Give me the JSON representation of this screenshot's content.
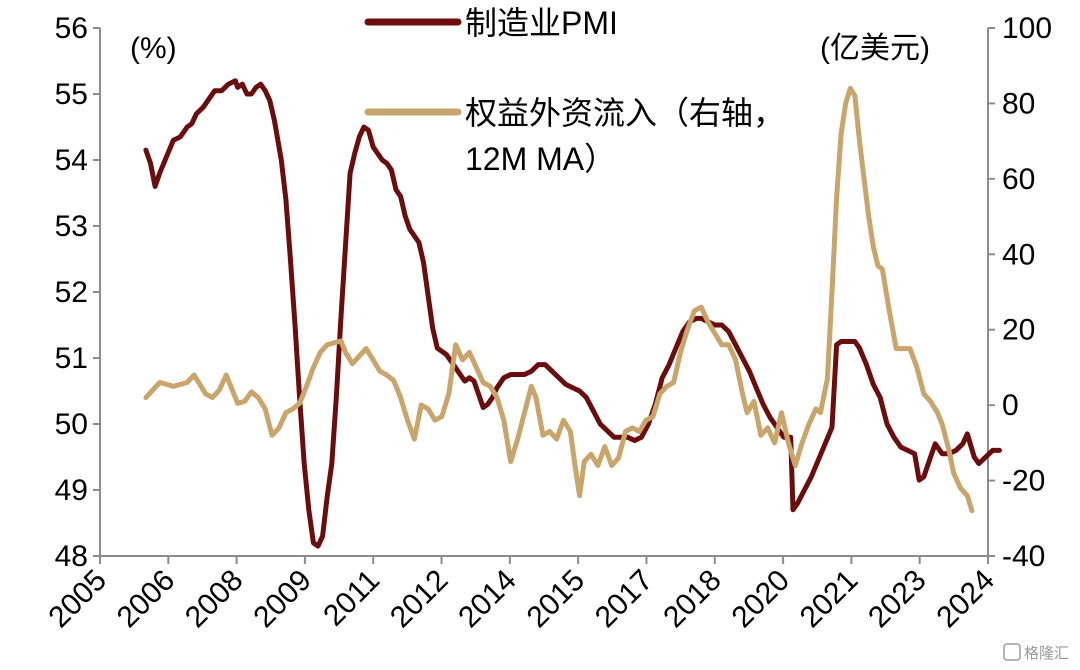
{
  "chart_data": {
    "type": "line",
    "x_ticks": [
      "2005",
      "2006",
      "2008",
      "2009",
      "2011",
      "2012",
      "2014",
      "2015",
      "2017",
      "2018",
      "2020",
      "2021",
      "2023",
      "2024"
    ],
    "y_left": {
      "unit": "(%)",
      "ylim": [
        48,
        56
      ],
      "ticks": [
        "48",
        "49",
        "50",
        "51",
        "52",
        "53",
        "54",
        "55",
        "56"
      ]
    },
    "y_right": {
      "unit": "(亿美元)",
      "ylim": [
        -40,
        100
      ],
      "ticks": [
        "-40",
        "-20",
        "0",
        "20",
        "40",
        "60",
        "80",
        "100"
      ]
    },
    "grid": false,
    "legend_position": "top-center",
    "series": [
      {
        "name": "制造业PMI",
        "axis": "left",
        "color": "#6b0d0d",
        "points": [
          [
            2006.0,
            54.15
          ],
          [
            2006.1,
            53.95
          ],
          [
            2006.2,
            53.6
          ],
          [
            2006.3,
            53.8
          ],
          [
            2006.45,
            54.05
          ],
          [
            2006.6,
            54.3
          ],
          [
            2006.75,
            54.35
          ],
          [
            2006.9,
            54.5
          ],
          [
            2007.0,
            54.55
          ],
          [
            2007.1,
            54.7
          ],
          [
            2007.25,
            54.8
          ],
          [
            2007.4,
            54.95
          ],
          [
            2007.5,
            55.05
          ],
          [
            2007.65,
            55.05
          ],
          [
            2007.8,
            55.15
          ],
          [
            2007.95,
            55.2
          ],
          [
            2008.0,
            55.1
          ],
          [
            2008.1,
            55.15
          ],
          [
            2008.2,
            55.0
          ],
          [
            2008.3,
            55.0
          ],
          [
            2008.4,
            55.1
          ],
          [
            2008.5,
            55.15
          ],
          [
            2008.6,
            55.05
          ],
          [
            2008.7,
            54.9
          ],
          [
            2008.8,
            54.6
          ],
          [
            2008.95,
            54.0
          ],
          [
            2009.05,
            53.4
          ],
          [
            2009.15,
            52.5
          ],
          [
            2009.25,
            51.5
          ],
          [
            2009.35,
            50.4
          ],
          [
            2009.45,
            49.4
          ],
          [
            2009.55,
            48.7
          ],
          [
            2009.65,
            48.2
          ],
          [
            2009.75,
            48.15
          ],
          [
            2009.85,
            48.3
          ],
          [
            2009.95,
            48.9
          ],
          [
            2010.05,
            49.4
          ],
          [
            2010.15,
            50.4
          ],
          [
            2010.25,
            51.6
          ],
          [
            2010.35,
            52.7
          ],
          [
            2010.45,
            53.8
          ],
          [
            2010.55,
            54.1
          ],
          [
            2010.65,
            54.35
          ],
          [
            2010.75,
            54.5
          ],
          [
            2010.85,
            54.45
          ],
          [
            2010.95,
            54.2
          ],
          [
            2011.05,
            54.1
          ],
          [
            2011.15,
            54.0
          ],
          [
            2011.25,
            53.95
          ],
          [
            2011.35,
            53.85
          ],
          [
            2011.45,
            53.55
          ],
          [
            2011.55,
            53.45
          ],
          [
            2011.65,
            53.15
          ],
          [
            2011.75,
            52.95
          ],
          [
            2011.85,
            52.85
          ],
          [
            2011.95,
            52.75
          ],
          [
            2012.05,
            52.45
          ],
          [
            2012.15,
            51.95
          ],
          [
            2012.25,
            51.45
          ],
          [
            2012.35,
            51.15
          ],
          [
            2012.45,
            51.1
          ],
          [
            2012.55,
            51.05
          ],
          [
            2012.65,
            50.95
          ],
          [
            2012.75,
            50.85
          ],
          [
            2012.85,
            50.75
          ],
          [
            2012.95,
            50.65
          ],
          [
            2013.05,
            50.7
          ],
          [
            2013.15,
            50.65
          ],
          [
            2013.25,
            50.45
          ],
          [
            2013.35,
            50.25
          ],
          [
            2013.45,
            50.3
          ],
          [
            2013.55,
            50.4
          ],
          [
            2013.65,
            50.55
          ],
          [
            2013.8,
            50.7
          ],
          [
            2013.95,
            50.75
          ],
          [
            2014.1,
            50.75
          ],
          [
            2014.25,
            50.75
          ],
          [
            2014.4,
            50.8
          ],
          [
            2014.55,
            50.9
          ],
          [
            2014.7,
            50.9
          ],
          [
            2014.85,
            50.8
          ],
          [
            2015.0,
            50.7
          ],
          [
            2015.15,
            50.6
          ],
          [
            2015.3,
            50.55
          ],
          [
            2015.45,
            50.5
          ],
          [
            2015.6,
            50.4
          ],
          [
            2015.75,
            50.2
          ],
          [
            2015.9,
            50.0
          ],
          [
            2016.05,
            49.9
          ],
          [
            2016.2,
            49.8
          ],
          [
            2016.35,
            49.8
          ],
          [
            2016.5,
            49.8
          ],
          [
            2016.65,
            49.75
          ],
          [
            2016.8,
            49.8
          ],
          [
            2016.95,
            50.0
          ],
          [
            2017.1,
            50.3
          ],
          [
            2017.25,
            50.7
          ],
          [
            2017.4,
            50.9
          ],
          [
            2017.55,
            51.15
          ],
          [
            2017.7,
            51.4
          ],
          [
            2017.85,
            51.55
          ],
          [
            2018.0,
            51.6
          ],
          [
            2018.1,
            51.6
          ],
          [
            2018.25,
            51.55
          ],
          [
            2018.4,
            51.5
          ],
          [
            2018.55,
            51.5
          ],
          [
            2018.7,
            51.4
          ],
          [
            2018.85,
            51.2
          ],
          [
            2019.0,
            51.0
          ],
          [
            2019.15,
            50.8
          ],
          [
            2019.3,
            50.55
          ],
          [
            2019.45,
            50.3
          ],
          [
            2019.6,
            50.1
          ],
          [
            2019.75,
            49.95
          ],
          [
            2019.9,
            49.8
          ],
          [
            2020.05,
            49.8
          ],
          [
            2020.1,
            48.7
          ],
          [
            2020.2,
            48.8
          ],
          [
            2020.35,
            49.0
          ],
          [
            2020.5,
            49.2
          ],
          [
            2020.65,
            49.45
          ],
          [
            2020.8,
            49.7
          ],
          [
            2020.95,
            49.95
          ],
          [
            2021.05,
            51.2
          ],
          [
            2021.15,
            51.25
          ],
          [
            2021.3,
            51.25
          ],
          [
            2021.45,
            51.25
          ],
          [
            2021.55,
            51.15
          ],
          [
            2021.7,
            50.9
          ],
          [
            2021.85,
            50.6
          ],
          [
            2022.0,
            50.4
          ],
          [
            2022.15,
            50.0
          ],
          [
            2022.3,
            49.8
          ],
          [
            2022.45,
            49.65
          ],
          [
            2022.6,
            49.6
          ],
          [
            2022.75,
            49.55
          ],
          [
            2022.85,
            49.15
          ],
          [
            2022.95,
            49.2
          ],
          [
            2023.05,
            49.4
          ],
          [
            2023.2,
            49.7
          ],
          [
            2023.35,
            49.55
          ],
          [
            2023.5,
            49.55
          ],
          [
            2023.65,
            49.6
          ],
          [
            2023.8,
            49.7
          ],
          [
            2023.9,
            49.85
          ],
          [
            2024.05,
            49.5
          ],
          [
            2024.15,
            49.4
          ],
          [
            2024.3,
            49.5
          ],
          [
            2024.45,
            49.6
          ],
          [
            2024.6,
            49.6
          ]
        ]
      },
      {
        "name": "权益外资流入（右轴，12M MA）",
        "axis": "right",
        "color": "#c9a46b",
        "points": [
          [
            2006.0,
            2
          ],
          [
            2006.15,
            4
          ],
          [
            2006.3,
            6
          ],
          [
            2006.45,
            5.5
          ],
          [
            2006.6,
            5
          ],
          [
            2006.75,
            5.5
          ],
          [
            2006.9,
            6
          ],
          [
            2007.05,
            8
          ],
          [
            2007.15,
            6
          ],
          [
            2007.3,
            3
          ],
          [
            2007.45,
            2
          ],
          [
            2007.6,
            4
          ],
          [
            2007.75,
            8
          ],
          [
            2007.85,
            5
          ],
          [
            2008.0,
            0.5
          ],
          [
            2008.15,
            1
          ],
          [
            2008.3,
            3.5
          ],
          [
            2008.45,
            2
          ],
          [
            2008.6,
            -1
          ],
          [
            2008.75,
            -8
          ],
          [
            2008.9,
            -6
          ],
          [
            2009.05,
            -2
          ],
          [
            2009.2,
            -1
          ],
          [
            2009.35,
            0.5
          ],
          [
            2009.5,
            5
          ],
          [
            2009.65,
            10
          ],
          [
            2009.8,
            14
          ],
          [
            2009.95,
            16
          ],
          [
            2010.1,
            16.5
          ],
          [
            2010.25,
            17
          ],
          [
            2010.35,
            14
          ],
          [
            2010.5,
            11
          ],
          [
            2010.65,
            13
          ],
          [
            2010.8,
            15
          ],
          [
            2010.95,
            12
          ],
          [
            2011.1,
            9
          ],
          [
            2011.25,
            8
          ],
          [
            2011.4,
            6.5
          ],
          [
            2011.55,
            2
          ],
          [
            2011.7,
            -4
          ],
          [
            2011.85,
            -9
          ],
          [
            2012.0,
            0
          ],
          [
            2012.15,
            -1
          ],
          [
            2012.3,
            -4
          ],
          [
            2012.45,
            -3
          ],
          [
            2012.6,
            3
          ],
          [
            2012.75,
            16
          ],
          [
            2012.9,
            12
          ],
          [
            2013.05,
            14
          ],
          [
            2013.2,
            10
          ],
          [
            2013.35,
            6
          ],
          [
            2013.5,
            5
          ],
          [
            2013.65,
            2
          ],
          [
            2013.8,
            -4
          ],
          [
            2013.95,
            -15
          ],
          [
            2014.1,
            -9
          ],
          [
            2014.25,
            -2
          ],
          [
            2014.4,
            5
          ],
          [
            2014.5,
            2
          ],
          [
            2014.65,
            -8
          ],
          [
            2014.8,
            -7
          ],
          [
            2014.95,
            -9
          ],
          [
            2015.1,
            -4
          ],
          [
            2015.25,
            -7
          ],
          [
            2015.35,
            -16
          ],
          [
            2015.45,
            -24
          ],
          [
            2015.55,
            -15
          ],
          [
            2015.7,
            -13
          ],
          [
            2015.85,
            -16
          ],
          [
            2016.0,
            -11
          ],
          [
            2016.15,
            -16
          ],
          [
            2016.3,
            -14
          ],
          [
            2016.45,
            -7
          ],
          [
            2016.6,
            -6
          ],
          [
            2016.75,
            -7
          ],
          [
            2016.9,
            -4
          ],
          [
            2017.05,
            -3
          ],
          [
            2017.2,
            3
          ],
          [
            2017.35,
            5
          ],
          [
            2017.5,
            6
          ],
          [
            2017.65,
            14
          ],
          [
            2017.8,
            20
          ],
          [
            2017.95,
            25
          ],
          [
            2018.1,
            26
          ],
          [
            2018.25,
            22
          ],
          [
            2018.4,
            19
          ],
          [
            2018.55,
            16
          ],
          [
            2018.7,
            16
          ],
          [
            2018.85,
            12
          ],
          [
            2019.0,
            3
          ],
          [
            2019.1,
            -2
          ],
          [
            2019.25,
            1
          ],
          [
            2019.4,
            -8
          ],
          [
            2019.55,
            -6
          ],
          [
            2019.7,
            -10
          ],
          [
            2019.85,
            -2
          ],
          [
            2020.0,
            -10
          ],
          [
            2020.15,
            -16
          ],
          [
            2020.3,
            -10
          ],
          [
            2020.45,
            -5
          ],
          [
            2020.6,
            -1
          ],
          [
            2020.7,
            -2
          ],
          [
            2020.85,
            7
          ],
          [
            2020.95,
            30
          ],
          [
            2021.05,
            55
          ],
          [
            2021.15,
            72
          ],
          [
            2021.25,
            80
          ],
          [
            2021.35,
            84
          ],
          [
            2021.45,
            82
          ],
          [
            2021.55,
            70
          ],
          [
            2021.65,
            60
          ],
          [
            2021.75,
            50
          ],
          [
            2021.85,
            42
          ],
          [
            2021.95,
            37
          ],
          [
            2022.05,
            36
          ],
          [
            2022.2,
            25
          ],
          [
            2022.35,
            15
          ],
          [
            2022.5,
            15
          ],
          [
            2022.65,
            15
          ],
          [
            2022.8,
            10
          ],
          [
            2022.95,
            3
          ],
          [
            2023.1,
            1
          ],
          [
            2023.25,
            -2
          ],
          [
            2023.35,
            -5
          ],
          [
            2023.5,
            -12
          ],
          [
            2023.6,
            -18
          ],
          [
            2023.75,
            -22
          ],
          [
            2023.9,
            -24
          ],
          [
            2024.0,
            -28
          ]
        ]
      }
    ]
  },
  "watermark": "格隆汇"
}
